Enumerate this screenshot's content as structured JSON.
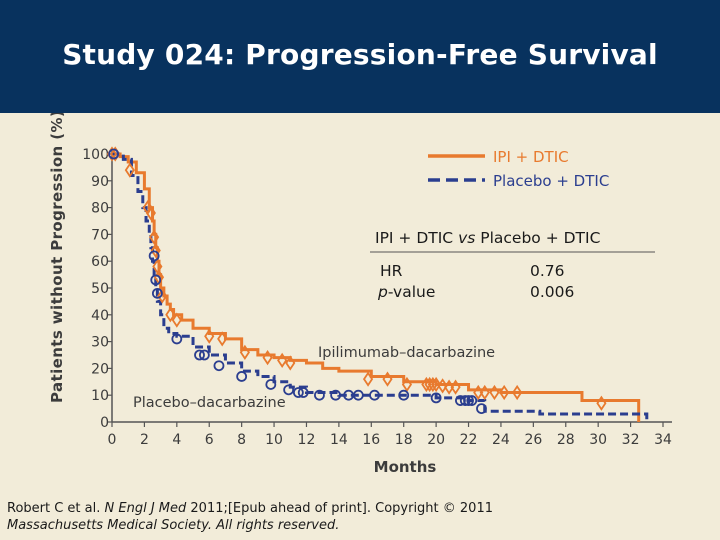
{
  "header": {
    "title": "Study 024: Progression-Free Survival"
  },
  "colors": {
    "header_bg": "#08325e",
    "ipi": "#e87a2e",
    "placebo": "#2b3e8f",
    "background": "#f2ecd9"
  },
  "chart_data": {
    "type": "line",
    "ylabel": "Patients without Progression (%)",
    "xlabel": "Months",
    "xlim": [
      0,
      34
    ],
    "ylim": [
      0,
      100
    ],
    "xticks": [
      "0",
      "2",
      "4",
      "6",
      "8",
      "10",
      "12",
      "14",
      "16",
      "18",
      "20",
      "22",
      "24",
      "26",
      "28",
      "30",
      "32",
      "34"
    ],
    "yticks": [
      "0",
      "10",
      "20",
      "30",
      "40",
      "50",
      "60",
      "70",
      "80",
      "90",
      "100"
    ],
    "legend": [
      {
        "label": "IPI + DTIC",
        "style": "solid",
        "color": "#e87a2e"
      },
      {
        "label": "Placebo + DTIC",
        "style": "dashed",
        "color": "#2b3e8f"
      }
    ],
    "annotations": {
      "ipi_curve_label": "Ipilimumab–dacarbazine",
      "placebo_curve_label": "Placebo–dacarbazine"
    },
    "stats_table": {
      "title_pre": "IPI + DTIC ",
      "title_vs": "vs",
      "title_post": " Placebo + DTIC",
      "row1_label": "HR",
      "row1_value": "0.76",
      "row2_label_italic": "p",
      "row2_label_rest": "-value",
      "row2_value": "0.006"
    },
    "series": [
      {
        "name": "IPI + DTIC",
        "steps": [
          [
            0,
            100
          ],
          [
            0.5,
            99
          ],
          [
            1,
            97
          ],
          [
            1.5,
            93
          ],
          [
            2,
            87
          ],
          [
            2.3,
            80
          ],
          [
            2.5,
            75
          ],
          [
            2.6,
            70
          ],
          [
            2.7,
            65
          ],
          [
            2.8,
            60
          ],
          [
            2.9,
            55
          ],
          [
            3,
            50
          ],
          [
            3.2,
            47
          ],
          [
            3.4,
            44
          ],
          [
            3.6,
            42
          ],
          [
            3.8,
            40
          ],
          [
            4.3,
            38
          ],
          [
            5,
            35
          ],
          [
            6,
            33
          ],
          [
            7,
            31
          ],
          [
            8,
            27
          ],
          [
            9,
            25
          ],
          [
            10,
            24
          ],
          [
            11,
            23
          ],
          [
            12,
            22
          ],
          [
            13,
            20
          ],
          [
            14,
            19
          ],
          [
            16,
            17
          ],
          [
            18,
            15
          ],
          [
            20,
            14
          ],
          [
            22,
            12
          ],
          [
            24,
            11
          ],
          [
            26,
            11
          ],
          [
            28,
            11
          ],
          [
            29,
            8
          ],
          [
            32,
            8
          ],
          [
            32.5,
            0
          ]
        ],
        "censors": [
          [
            0,
            100
          ],
          [
            0.2,
            100
          ],
          [
            1.1,
            94
          ],
          [
            2.2,
            80
          ],
          [
            2.4,
            78
          ],
          [
            2.6,
            69
          ],
          [
            2.7,
            64
          ],
          [
            2.8,
            58
          ],
          [
            2.9,
            54
          ],
          [
            3.1,
            47
          ],
          [
            3.6,
            40
          ],
          [
            4,
            38
          ],
          [
            6,
            32
          ],
          [
            6.8,
            31
          ],
          [
            8.2,
            26
          ],
          [
            9.6,
            24
          ],
          [
            10.5,
            23
          ],
          [
            11,
            22
          ],
          [
            15.8,
            16
          ],
          [
            17,
            16
          ],
          [
            18.2,
            14
          ],
          [
            19.4,
            14
          ],
          [
            19.6,
            14
          ],
          [
            19.8,
            14
          ],
          [
            20,
            14
          ],
          [
            20.4,
            13.5
          ],
          [
            20.8,
            13
          ],
          [
            21.2,
            13
          ],
          [
            22.6,
            11
          ],
          [
            23,
            11
          ],
          [
            23.6,
            11
          ],
          [
            24.2,
            11
          ],
          [
            25,
            11
          ],
          [
            30.2,
            7
          ]
        ]
      },
      {
        "name": "Placebo + DTIC",
        "steps": [
          [
            0,
            100
          ],
          [
            0.7,
            98
          ],
          [
            1.2,
            92
          ],
          [
            1.6,
            86
          ],
          [
            1.9,
            80
          ],
          [
            2.1,
            75
          ],
          [
            2.3,
            70
          ],
          [
            2.4,
            65
          ],
          [
            2.5,
            60
          ],
          [
            2.6,
            55
          ],
          [
            2.7,
            50
          ],
          [
            2.8,
            45
          ],
          [
            3,
            40
          ],
          [
            3.2,
            35
          ],
          [
            3.5,
            33
          ],
          [
            4,
            32
          ],
          [
            5,
            28
          ],
          [
            6,
            25
          ],
          [
            7,
            22
          ],
          [
            8,
            19
          ],
          [
            9,
            17
          ],
          [
            10,
            15
          ],
          [
            11,
            13
          ],
          [
            12,
            11
          ],
          [
            14,
            10
          ],
          [
            18,
            10
          ],
          [
            20,
            9
          ],
          [
            21,
            9
          ],
          [
            22,
            8
          ],
          [
            23,
            4
          ],
          [
            26,
            4
          ],
          [
            26.4,
            3
          ],
          [
            32.5,
            3
          ],
          [
            33,
            0
          ]
        ],
        "censors": [
          [
            0.1,
            100
          ],
          [
            2.6,
            62
          ],
          [
            2.7,
            53
          ],
          [
            2.8,
            48
          ],
          [
            4,
            31
          ],
          [
            5.4,
            25
          ],
          [
            5.7,
            25
          ],
          [
            6.6,
            21
          ],
          [
            8,
            17
          ],
          [
            9.8,
            14
          ],
          [
            10.9,
            12
          ],
          [
            11.5,
            11
          ],
          [
            11.8,
            11
          ],
          [
            12.8,
            10
          ],
          [
            13.8,
            10
          ],
          [
            14.6,
            10
          ],
          [
            15.2,
            10
          ],
          [
            16.2,
            10
          ],
          [
            18,
            10
          ],
          [
            20,
            9
          ],
          [
            21.5,
            8
          ],
          [
            21.8,
            8
          ],
          [
            22,
            8
          ],
          [
            22.2,
            8
          ],
          [
            22.8,
            5
          ]
        ]
      }
    ]
  },
  "citation": {
    "line1_pre": "Robert C et al. ",
    "journal": "N Engl J Med",
    "line1_post": " 2011;[Epub ahead of print]. Copyright © 2011",
    "line2": "Massachusetts Medical Society. All rights reserved."
  }
}
